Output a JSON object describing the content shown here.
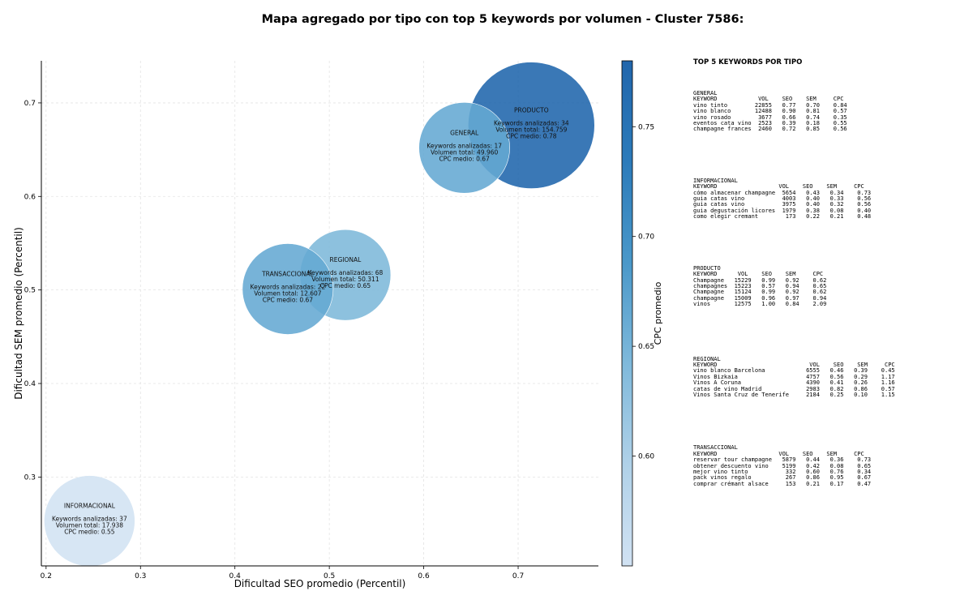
{
  "chart_data": {
    "type": "scatter",
    "title": "Mapa agregado por tipo con top 5 keywords por volumen - Cluster 7586:",
    "xlabel": "Dificultad SEO promedio (Percentil)",
    "ylabel": "Dificultad SEM promedio (Percentil)",
    "xlim": [
      0.195,
      0.785
    ],
    "ylim": [
      0.205,
      0.745
    ],
    "xticks": [
      "0.2",
      "0.3",
      "0.4",
      "0.5",
      "0.6",
      "0.7"
    ],
    "yticks": [
      "0.3",
      "0.4",
      "0.5",
      "0.6",
      "0.7"
    ],
    "grid": true,
    "kw_label": "Keywords analizadas:",
    "vol_label": "Volumen total:",
    "cpc_label": "CPC medio:",
    "points": [
      {
        "name": "INFORMACIONAL",
        "x": 0.246,
        "y": 0.253,
        "keywords": "37",
        "volume": "17.938",
        "cpc": "0.55",
        "cpc_value": 0.55,
        "color": "#d2e3f3"
      },
      {
        "name": "TRANSACCIONAL",
        "x": 0.456,
        "y": 0.501,
        "keywords": "22",
        "volume": "12.607",
        "cpc": "0.67",
        "cpc_value": 0.67,
        "color": "#64a9d3"
      },
      {
        "name": "REGIONAL",
        "x": 0.517,
        "y": 0.516,
        "keywords": "68",
        "volume": "50.311",
        "cpc": "0.65",
        "cpc_value": 0.65,
        "color": "#7db8da"
      },
      {
        "name": "GENERAL",
        "x": 0.643,
        "y": 0.652,
        "keywords": "17",
        "volume": "49.960",
        "cpc": "0.67",
        "cpc_value": 0.67,
        "color": "#64a9d3"
      },
      {
        "name": "PRODUCTO",
        "x": 0.714,
        "y": 0.676,
        "keywords": "34",
        "volume": "154.759",
        "cpc": "0.78",
        "cpc_value": 0.78,
        "color": "#1f65ac"
      }
    ],
    "colorbar": {
      "label": "CPC promedio",
      "range": [
        0.55,
        0.78
      ],
      "ticks": [
        "0.60",
        "0.65",
        "0.70",
        "0.75"
      ],
      "colors": [
        "#d1e2f3",
        "#b0d1e8",
        "#7fb9db",
        "#4a98c9",
        "#2c7bba",
        "#2166ac"
      ]
    }
  },
  "side_panel": {
    "title": "TOP 5 KEYWORDS POR TIPO",
    "blocks": [
      {
        "type": "GENERAL",
        "header": "KEYWORD            VOL    SEO    SEM     CPC",
        "rows": [
          "vino tinto        22855   0.77   0.70    0.84",
          "vino blanco       12488   0.90   0.81    0.57",
          "vino rosado        3677   0.66   0.74    0.35",
          "eventos cata vino  2523   0.39   0.18    0.55",
          "champagne frances  2460   0.72   0.85    0.56"
        ]
      },
      {
        "type": "INFORMACIONAL",
        "header": "KEYWORD                  VOL    SEO    SEM     CPC",
        "rows": [
          "cómo almacenar champagne  5654   0.43   0.34    0.73",
          "guia catas vino           4003   0.40   0.33    0.56",
          "guia catas vino           3975   0.40   0.32    0.56",
          "guia degustación licores  1979   0.38   0.08    0.40",
          "como elegir cremant        173   0.22   0.21    0.48"
        ]
      },
      {
        "type": "PRODUCTO",
        "header": "KEYWORD      VOL    SEO    SEM     CPC",
        "rows": [
          "Champagne   15229   0.99   0.92    0.62",
          "champagnes  15223   0.57   0.94    0.65",
          "Champagne   15124   0.99   0.92    0.62",
          "champagne   15009   0.96   0.97    0.94",
          "vinos       12575   1.00   0.84    2.09"
        ]
      },
      {
        "type": "REGIONAL",
        "header": "KEYWORD                           VOL    SEO    SEM     CPC",
        "rows": [
          "vino blanco Barcelona            6555   0.46   0.39    0.45",
          "Vinos Bizkaia                    4757   0.56   0.29    1.17",
          "Vinos A Coruna                   4390   0.41   0.26    1.16",
          "catas de vino Madrid             2983   0.82   0.86    0.57",
          "Vinos Santa Cruz de Tenerife     2184   0.25   0.10    1.15"
        ]
      },
      {
        "type": "TRANSACCIONAL",
        "header": "KEYWORD                  VOL    SEO    SEM     CPC",
        "rows": [
          "reservar tour champagne   5879   0.44   0.36    0.73",
          "obtener descuento vino    5199   0.42   0.08    0.65",
          "mejor vino tinto           332   0.60   0.76    0.34",
          "pack vinos regalo          267   0.86   0.95    0.67",
          "comprar crémant alsace     153   0.21   0.17    0.47"
        ]
      }
    ]
  }
}
